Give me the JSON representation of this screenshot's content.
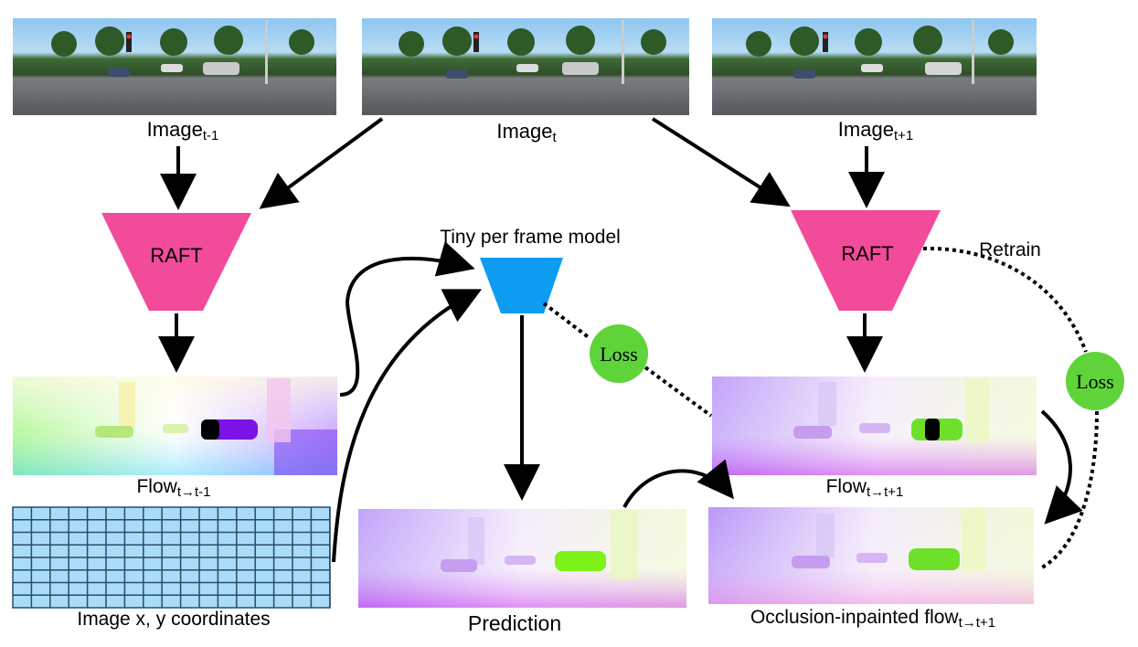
{
  "images": {
    "prev": {
      "label": "Image",
      "sub": "t-1"
    },
    "curr": {
      "label": "Image",
      "sub": "t"
    },
    "next": {
      "label": "Image",
      "sub": "t+1"
    }
  },
  "raft_left": {
    "label": "RAFT"
  },
  "raft_right": {
    "label": "RAFT"
  },
  "tiny_model": {
    "label": "Tiny per frame model"
  },
  "retrain": {
    "label": "Retrain"
  },
  "loss_mid": {
    "label": "Loss"
  },
  "loss_right": {
    "label": "Loss"
  },
  "flow_back": {
    "label": "Flow",
    "sub": "t→t-1"
  },
  "flow_fwd": {
    "label": "Flow",
    "sub": "t→t+1"
  },
  "coords": {
    "label": "Image x, y coordinates"
  },
  "prediction": {
    "label": "Prediction"
  },
  "inpainted": {
    "label": "Occlusion-inpainted flow",
    "sub": "t→t+1"
  },
  "colors": {
    "raft": "#f24b9a",
    "tiny_model": "#0d9cf2",
    "loss": "#5fd43a",
    "grid_fill": "#a9dcf7",
    "grid_line": "#2a4b6c",
    "sky": "#8ec6ef",
    "road": "#6d7075",
    "trees": "#3e6b35"
  }
}
